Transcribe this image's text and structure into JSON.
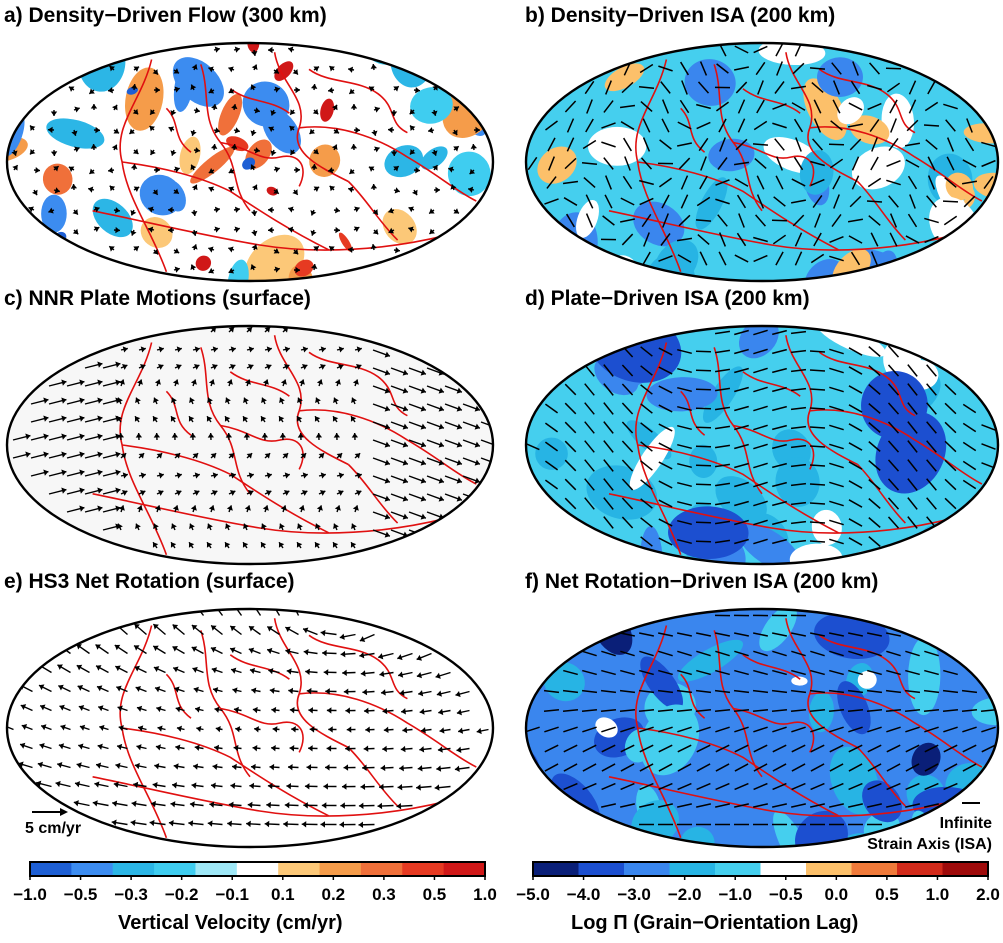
{
  "panels": {
    "a": {
      "title": "a) Density−Driven Flow (300 km)"
    },
    "b": {
      "title": "b) Density−Driven ISA (200 km)"
    },
    "c": {
      "title": "c) NNR Plate Motions (surface)"
    },
    "d": {
      "title": "d) Plate−Driven ISA (200 km)"
    },
    "e": {
      "title": "e) HS3 Net Rotation (surface)"
    },
    "f": {
      "title": "f) Net Rotation−Driven ISA (200 km)"
    }
  },
  "scale_arrow": {
    "label": "5 cm/yr"
  },
  "isa_legend": {
    "line1": "Infinite",
    "line2": "Strain Axis (ISA)"
  },
  "colorbar_velocity": {
    "title": "Vertical Velocity (cm/yr)",
    "ticks": [
      "−1.0",
      "−0.5",
      "−0.3",
      "−0.2",
      "−0.1",
      "0.1",
      "0.2",
      "0.3",
      "0.5",
      "1.0"
    ],
    "colors": [
      "#1e5fd4",
      "#3c8cf0",
      "#2cb6e6",
      "#3fcdf0",
      "#9fe8f7",
      "#ffffff",
      "#fcc878",
      "#f59c4a",
      "#f0703a",
      "#e63a22",
      "#d01818"
    ]
  },
  "colorbar_lag": {
    "title": "Log Π (Grain−Orientation Lag)",
    "ticks": [
      "−5.0",
      "−4.0",
      "−3.0",
      "−2.0",
      "−1.0",
      "−0.5",
      "0.0",
      "0.5",
      "1.0",
      "2.0"
    ],
    "colors": [
      "#0a1f78",
      "#1c4fd0",
      "#3a86ee",
      "#27b4e4",
      "#45cfee",
      "#ffffff",
      "#fcc06a",
      "#f07a3a",
      "#d22a1a",
      "#9e0a0a"
    ]
  }
}
